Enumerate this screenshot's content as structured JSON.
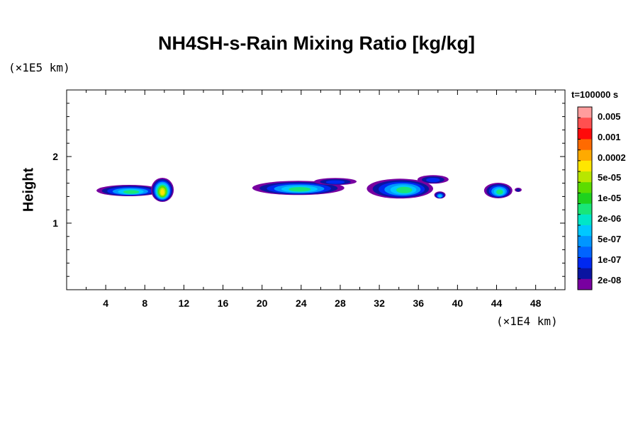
{
  "chart_data": {
    "type": "heatmap",
    "title": "NH4SH-s-Rain Mixing Ratio [kg/kg]",
    "ylabel": "Height",
    "y_unit": "(×1E5 km)",
    "x_unit": "(×1E4 km)",
    "time_label": "t=100000 s",
    "xlim": [
      0,
      51
    ],
    "ylim": [
      0,
      3
    ],
    "x_ticks": [
      "4",
      "8",
      "12",
      "16",
      "20",
      "24",
      "28",
      "32",
      "36",
      "40",
      "44",
      "48"
    ],
    "y_ticks": [
      "1",
      "2"
    ],
    "colorbar": {
      "labels": [
        "0.005",
        "0.001",
        "0.0002",
        "5e-05",
        "1e-05",
        "2e-06",
        "5e-07",
        "1e-07",
        "2e-08"
      ],
      "colors": [
        "#ff9d9d",
        "#ff5050",
        "#ff0a0a",
        "#ff6a00",
        "#ffaa00",
        "#ffe600",
        "#b8e600",
        "#5cdc00",
        "#1ed21e",
        "#19e678",
        "#00e6c8",
        "#00c8ff",
        "#0096ff",
        "#0064ff",
        "#0028f0",
        "#0a14a0",
        "#7800a0"
      ]
    },
    "features": [
      {
        "x_start": 3.2,
        "x_end": 11.2,
        "y_center": 1.5,
        "peak": "5e-05"
      },
      {
        "x_start": 19.0,
        "x_end": 29.0,
        "y_center": 1.55,
        "peak": "1e-05"
      },
      {
        "x_start": 30.5,
        "x_end": 39.0,
        "y_center": 1.55,
        "peak": "1e-05"
      },
      {
        "x_start": 43.0,
        "x_end": 46.5,
        "y_center": 1.5,
        "peak": "1e-05"
      }
    ]
  }
}
